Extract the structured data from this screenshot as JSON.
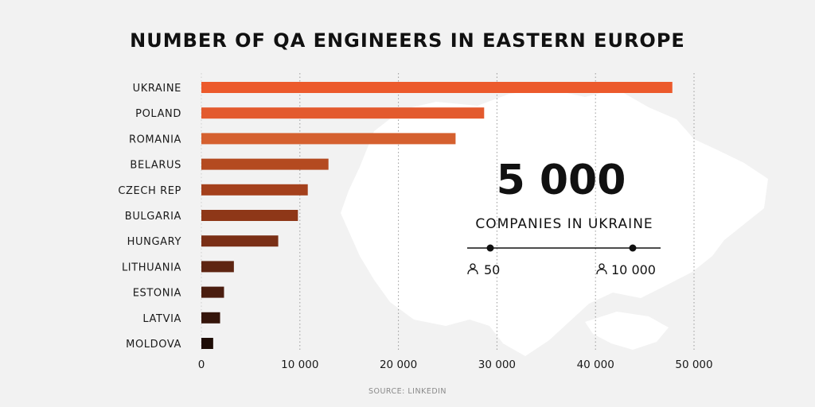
{
  "chart_data": {
    "type": "bar",
    "orientation": "horizontal",
    "title": "NUMBER OF QA ENGINEERS IN EASTERN EUROPE",
    "categories": [
      "UKRAINE",
      "POLAND",
      "ROMANIA",
      "BELARUS",
      "CZECH REP",
      "BULGARIA",
      "HUNGARY",
      "LITHUANIA",
      "ESTONIA",
      "LATVIA",
      "MOLDOVA"
    ],
    "values": [
      47800,
      28700,
      25800,
      12900,
      10800,
      9800,
      7800,
      3300,
      2300,
      1900,
      1200
    ],
    "bar_colors": [
      "#ec5a2c",
      "#e35a2e",
      "#d5602f",
      "#b44a20",
      "#a4401c",
      "#8e3718",
      "#7a2f16",
      "#5e2512",
      "#4a1d0f",
      "#35150b",
      "#1e0d07"
    ],
    "xlim": [
      0,
      50000
    ],
    "xticks": [
      0,
      10000,
      20000,
      30000,
      40000,
      50000
    ],
    "xtick_labels": [
      "0",
      "10 000",
      "20 000",
      "30 000",
      "40 000",
      "50 000"
    ],
    "grid": "vertical dotted",
    "source": "SOURCE: LINKEDIN"
  },
  "callout": {
    "number": "5 000",
    "label": "COMPANIES IN UKRAINE",
    "range_min": "50",
    "range_max": "10 000",
    "range_icon": "person-icon"
  },
  "decoration": {
    "background_map": "ukraine-map-silhouette"
  }
}
